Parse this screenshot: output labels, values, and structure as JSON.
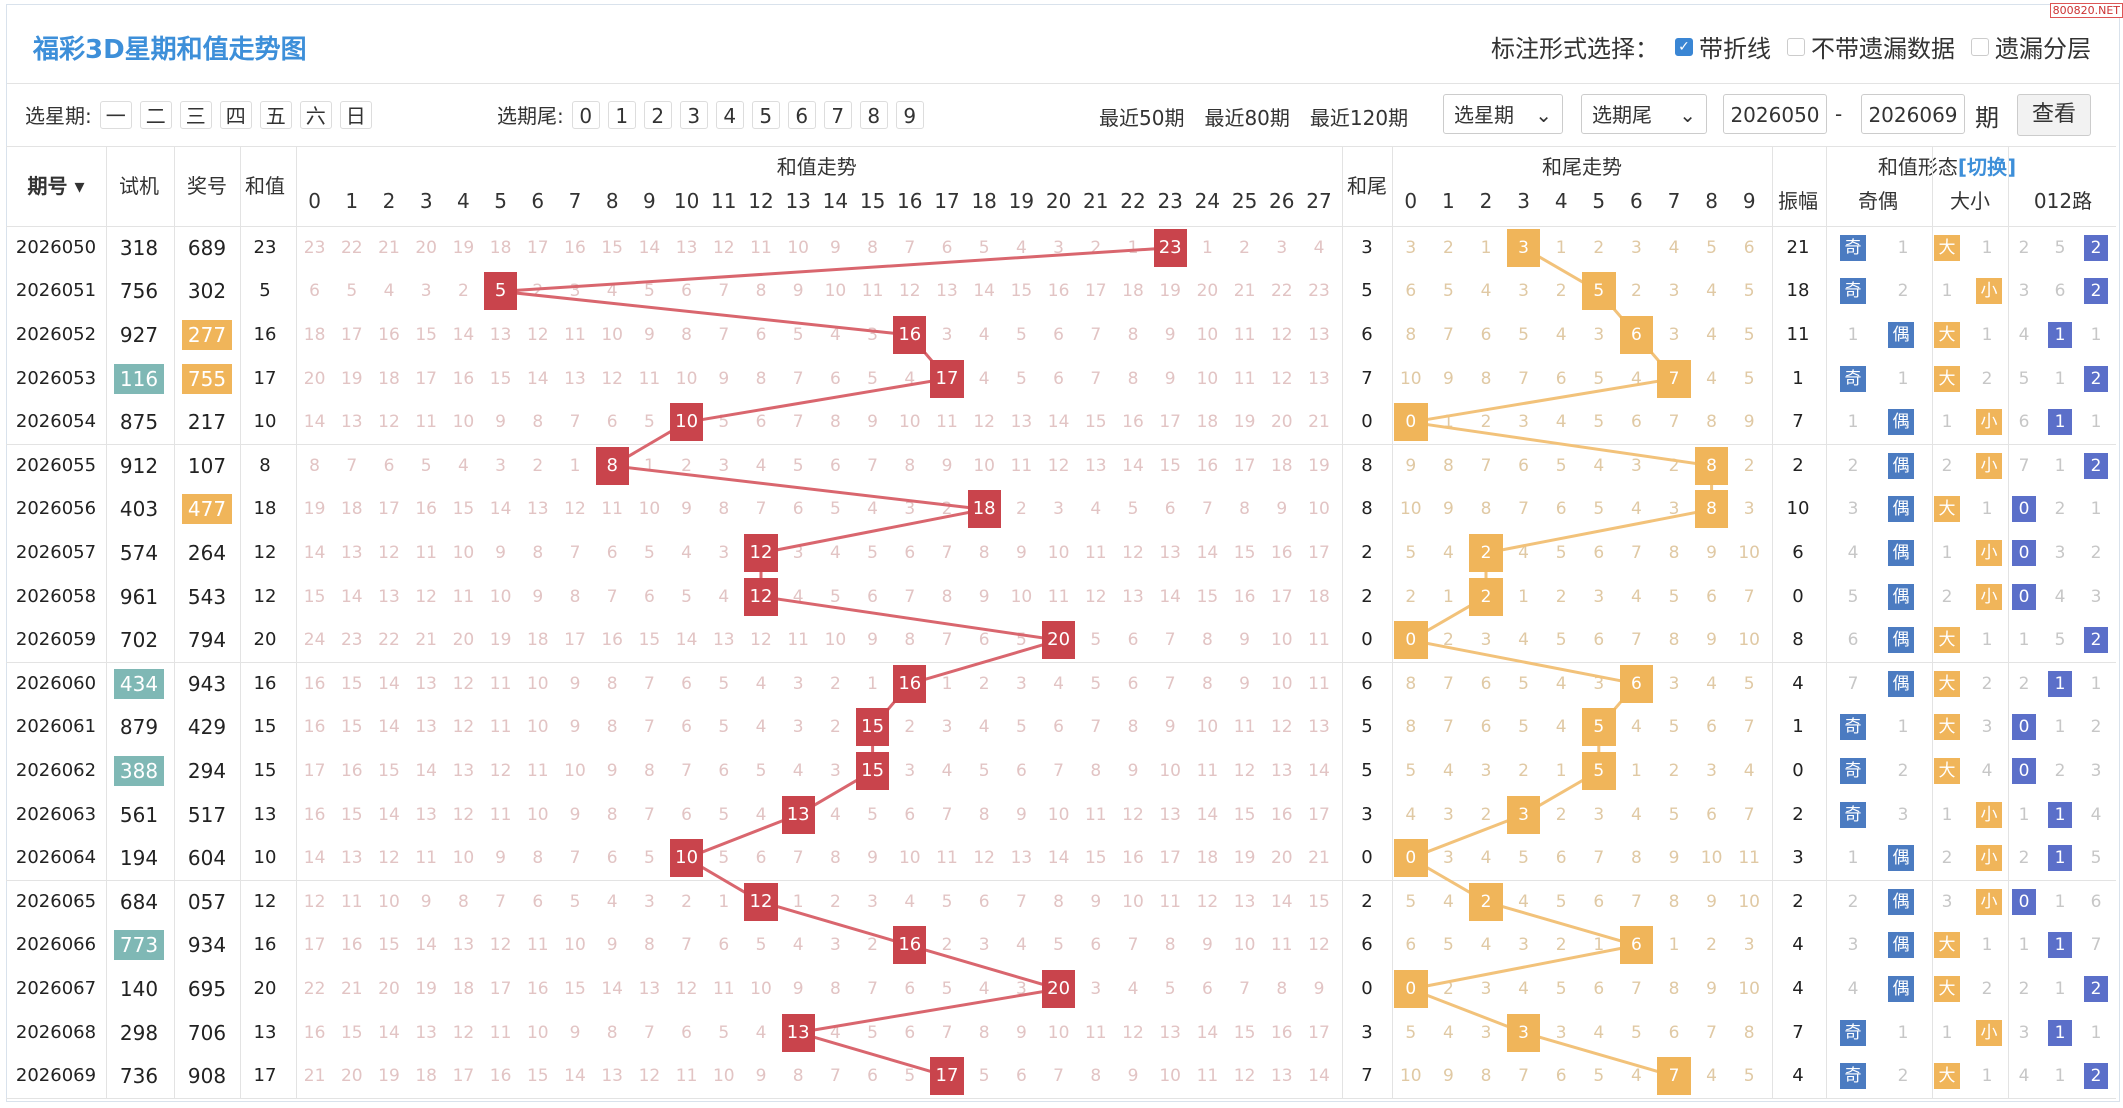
{
  "title": "福彩3D星期和值走势图",
  "options": {
    "label": "标注形式选择：",
    "items": [
      {
        "text": "带折线",
        "checked": true
      },
      {
        "text": "不带遗漏数据",
        "checked": false
      },
      {
        "text": "遗漏分层",
        "checked": false
      }
    ]
  },
  "watermark": "800820.NET",
  "filter": {
    "weekday_label": "选星期:",
    "weekdays": [
      "一",
      "二",
      "三",
      "四",
      "五",
      "六",
      "日"
    ],
    "tail_label": "选期尾:",
    "tails": [
      "0",
      "1",
      "2",
      "3",
      "4",
      "5",
      "6",
      "7",
      "8",
      "9"
    ],
    "recent": [
      "最近50期",
      "最近80期",
      "最近120期"
    ],
    "select_weekday": "选星期",
    "select_tail": "选期尾",
    "from_issue": "2026050",
    "dash": "-",
    "to_issue": "2026069",
    "issue_unit": "期",
    "query": "查看"
  },
  "headers": {
    "issue": "期号",
    "trial": "试机",
    "prize": "奖号",
    "sum": "和值",
    "sum_trend": "和值走势",
    "sum_tail": "和尾",
    "tail_trend": "和尾走势",
    "form": "和值形态",
    "switch": "[切换]",
    "amp": "振幅",
    "oe": "奇偶",
    "bs": "大小",
    "road": "012路",
    "sum_cols": [
      "0",
      "1",
      "2",
      "3",
      "4",
      "5",
      "6",
      "7",
      "8",
      "9",
      "10",
      "11",
      "12",
      "13",
      "14",
      "15",
      "16",
      "17",
      "18",
      "19",
      "20",
      "21",
      "22",
      "23",
      "24",
      "25",
      "26",
      "27"
    ],
    "tail_cols": [
      "0",
      "1",
      "2",
      "3",
      "4",
      "5",
      "6",
      "7",
      "8",
      "9"
    ]
  },
  "rows": [
    {
      "issue": "2026050",
      "trial": "318",
      "trial_hl": false,
      "prize": "689",
      "prize_hl": false,
      "sum": "23",
      "tail": "3",
      "amp": "21",
      "oe": "奇",
      "oe_miss": "1",
      "bs": "大",
      "bs_miss": "1",
      "road": "2",
      "road_miss": [
        "2",
        "5"
      ]
    },
    {
      "issue": "2026051",
      "trial": "756",
      "trial_hl": false,
      "prize": "302",
      "prize_hl": false,
      "sum": "5",
      "tail": "5",
      "amp": "18",
      "oe": "奇",
      "oe_miss": "2",
      "bs": "小",
      "bs_miss": "1",
      "road": "2",
      "road_miss": [
        "3",
        "6"
      ]
    },
    {
      "issue": "2026052",
      "trial": "927",
      "trial_hl": false,
      "prize": "277",
      "prize_hl": true,
      "sum": "16",
      "tail": "6",
      "amp": "11",
      "oe": "偶",
      "oe_miss": "1",
      "bs": "大",
      "bs_miss": "1",
      "road": "1",
      "road_miss": [
        "4",
        "1"
      ]
    },
    {
      "issue": "2026053",
      "trial": "116",
      "trial_hl": true,
      "prize": "755",
      "prize_hl": true,
      "sum": "17",
      "tail": "7",
      "amp": "1",
      "oe": "奇",
      "oe_miss": "1",
      "bs": "大",
      "bs_miss": "2",
      "road": "2",
      "road_miss": [
        "5",
        "1"
      ]
    },
    {
      "issue": "2026054",
      "trial": "875",
      "trial_hl": false,
      "prize": "217",
      "prize_hl": false,
      "sum": "10",
      "tail": "0",
      "amp": "7",
      "oe": "偶",
      "oe_miss": "1",
      "bs": "小",
      "bs_miss": "1",
      "road": "1",
      "road_miss": [
        "6",
        "1"
      ]
    },
    {
      "issue": "2026055",
      "trial": "912",
      "trial_hl": false,
      "prize": "107",
      "prize_hl": false,
      "sum": "8",
      "tail": "8",
      "amp": "2",
      "oe": "偶",
      "oe_miss": "2",
      "bs": "小",
      "bs_miss": "2",
      "road": "2",
      "road_miss": [
        "7",
        "1"
      ]
    },
    {
      "issue": "2026056",
      "trial": "403",
      "trial_hl": false,
      "prize": "477",
      "prize_hl": true,
      "sum": "18",
      "tail": "8",
      "amp": "10",
      "oe": "偶",
      "oe_miss": "3",
      "bs": "大",
      "bs_miss": "1",
      "road": "0",
      "road_miss": [
        "2",
        "1"
      ]
    },
    {
      "issue": "2026057",
      "trial": "574",
      "trial_hl": false,
      "prize": "264",
      "prize_hl": false,
      "sum": "12",
      "tail": "2",
      "amp": "6",
      "oe": "偶",
      "oe_miss": "4",
      "bs": "小",
      "bs_miss": "1",
      "road": "0",
      "road_miss": [
        "3",
        "2"
      ]
    },
    {
      "issue": "2026058",
      "trial": "961",
      "trial_hl": false,
      "prize": "543",
      "prize_hl": false,
      "sum": "12",
      "tail": "2",
      "amp": "0",
      "oe": "偶",
      "oe_miss": "5",
      "bs": "小",
      "bs_miss": "2",
      "road": "0",
      "road_miss": [
        "4",
        "3"
      ]
    },
    {
      "issue": "2026059",
      "trial": "702",
      "trial_hl": false,
      "prize": "794",
      "prize_hl": false,
      "sum": "20",
      "tail": "0",
      "amp": "8",
      "oe": "偶",
      "oe_miss": "6",
      "bs": "大",
      "bs_miss": "1",
      "road": "2",
      "road_miss": [
        "1",
        "5"
      ]
    },
    {
      "issue": "2026060",
      "trial": "434",
      "trial_hl": true,
      "prize": "943",
      "prize_hl": false,
      "sum": "16",
      "tail": "6",
      "amp": "4",
      "oe": "偶",
      "oe_miss": "7",
      "bs": "大",
      "bs_miss": "2",
      "road": "1",
      "road_miss": [
        "2",
        "1"
      ]
    },
    {
      "issue": "2026061",
      "trial": "879",
      "trial_hl": false,
      "prize": "429",
      "prize_hl": false,
      "sum": "15",
      "tail": "5",
      "amp": "1",
      "oe": "奇",
      "oe_miss": "1",
      "bs": "大",
      "bs_miss": "3",
      "road": "0",
      "road_miss": [
        "1",
        "2"
      ]
    },
    {
      "issue": "2026062",
      "trial": "388",
      "trial_hl": true,
      "prize": "294",
      "prize_hl": false,
      "sum": "15",
      "tail": "5",
      "amp": "0",
      "oe": "奇",
      "oe_miss": "2",
      "bs": "大",
      "bs_miss": "4",
      "road": "0",
      "road_miss": [
        "2",
        "3"
      ]
    },
    {
      "issue": "2026063",
      "trial": "561",
      "trial_hl": false,
      "prize": "517",
      "prize_hl": false,
      "sum": "13",
      "tail": "3",
      "amp": "2",
      "oe": "奇",
      "oe_miss": "3",
      "bs": "小",
      "bs_miss": "1",
      "road": "1",
      "road_miss": [
        "1",
        "4"
      ]
    },
    {
      "issue": "2026064",
      "trial": "194",
      "trial_hl": false,
      "prize": "604",
      "prize_hl": false,
      "sum": "10",
      "tail": "0",
      "amp": "3",
      "oe": "偶",
      "oe_miss": "1",
      "bs": "小",
      "bs_miss": "2",
      "road": "1",
      "road_miss": [
        "2",
        "5"
      ]
    },
    {
      "issue": "2026065",
      "trial": "684",
      "trial_hl": false,
      "prize": "057",
      "prize_hl": false,
      "sum": "12",
      "tail": "2",
      "amp": "2",
      "oe": "偶",
      "oe_miss": "2",
      "bs": "小",
      "bs_miss": "3",
      "road": "0",
      "road_miss": [
        "1",
        "6"
      ]
    },
    {
      "issue": "2026066",
      "trial": "773",
      "trial_hl": true,
      "prize": "934",
      "prize_hl": false,
      "sum": "16",
      "tail": "6",
      "amp": "4",
      "oe": "偶",
      "oe_miss": "3",
      "bs": "大",
      "bs_miss": "1",
      "road": "1",
      "road_miss": [
        "1",
        "7"
      ]
    },
    {
      "issue": "2026067",
      "trial": "140",
      "trial_hl": false,
      "prize": "695",
      "prize_hl": false,
      "sum": "20",
      "tail": "0",
      "amp": "4",
      "oe": "偶",
      "oe_miss": "4",
      "bs": "大",
      "bs_miss": "2",
      "road": "2",
      "road_miss": [
        "2",
        "1"
      ]
    },
    {
      "issue": "2026068",
      "trial": "298",
      "trial_hl": false,
      "prize": "706",
      "prize_hl": false,
      "sum": "13",
      "tail": "3",
      "amp": "7",
      "oe": "奇",
      "oe_miss": "1",
      "bs": "小",
      "bs_miss": "1",
      "road": "1",
      "road_miss": [
        "3",
        "1"
      ]
    },
    {
      "issue": "2026069",
      "trial": "736",
      "trial_hl": false,
      "prize": "908",
      "prize_hl": false,
      "sum": "17",
      "tail": "7",
      "amp": "4",
      "oe": "奇",
      "oe_miss": "2",
      "bs": "大",
      "bs_miss": "1",
      "road": "2",
      "road_miss": [
        "4",
        "1"
      ]
    }
  ]
}
